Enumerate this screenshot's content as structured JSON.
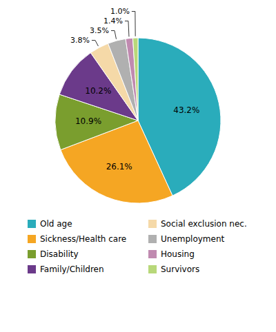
{
  "chart_data": {
    "type": "pie",
    "categories": [
      "Old age",
      "Sickness/Health care",
      "Disability",
      "Family/Children",
      "Social exclusion nec.",
      "Unemployment",
      "Housing",
      "Survivors"
    ],
    "values": [
      43.2,
      26.1,
      10.9,
      10.2,
      3.8,
      3.5,
      1.4,
      1.0
    ],
    "value_labels": [
      "43.2%",
      "26.1%",
      "10.9%",
      "10.2%",
      "3.8%",
      "3.5%",
      "1.4%",
      "1.0%"
    ],
    "colors": [
      "#2aacbb",
      "#f5a623",
      "#7a9e2e",
      "#6b3a8a",
      "#f5d9a8",
      "#b0b0b0",
      "#c08ab0",
      "#b8d87a"
    ],
    "data_labels": true,
    "legend": "bottom"
  }
}
